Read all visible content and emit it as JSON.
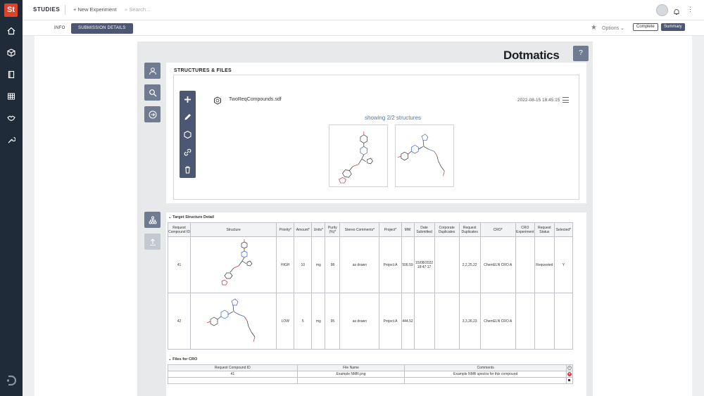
{
  "app": {
    "logo": "St",
    "title": "STUDIES",
    "new_experiment": "+ New Experiment",
    "search_placeholder": "Search..."
  },
  "rail_icons": [
    "home-icon",
    "cube-icon",
    "book-icon",
    "grid-icon",
    "handshake-icon",
    "tool-icon"
  ],
  "tabs": {
    "info": "INFO",
    "submission_details": "SUBMISSION DETAILS"
  },
  "actions": {
    "options": "Options",
    "complete": "Complete",
    "summary": "Summary"
  },
  "brand": "Dotmatics",
  "help_label": "?",
  "structures": {
    "title": "STRUCTURES & FILES",
    "file_name": "TwoReqCompounds.sdf",
    "file_date": "2022-08-15 18:45:15",
    "showing": "showing 2/2 structures"
  },
  "detail": {
    "header": "Target Structure Detail",
    "columns": [
      "Request Compound ID",
      "Structure",
      "Priority*",
      "Amount*",
      "Units*",
      "Purity (%)*",
      "Stereo Comments*",
      "Project*",
      "MW",
      "Date Submitted",
      "Corporate Duplicates",
      "Request Duplicates",
      "CRO*",
      "CRO Experiment",
      "Request Status",
      "Selected*"
    ],
    "rows": [
      {
        "id": "41",
        "priority": "HIGH",
        "amount": "10",
        "units": "mg",
        "purity": "98",
        "stereo": "as drawn",
        "project": "Project A",
        "mw": "506.59",
        "date": "15/08/2022 18:47:17",
        "corp_dup": "",
        "req_dup": "2,2,25,22",
        "cro": "ChemELN CRO A",
        "cro_exp": "",
        "status": "Requested",
        "selected": "Y"
      },
      {
        "id": "42",
        "priority": "LOW",
        "amount": "5",
        "units": "mg",
        "purity": "95",
        "stereo": "as drawn",
        "project": "Project A",
        "mw": "444.52",
        "date": "",
        "corp_dup": "",
        "req_dup": "3,3,26,23",
        "cro": "ChemELN CRO A",
        "cro_exp": "",
        "status": "",
        "selected": ""
      }
    ]
  },
  "files": {
    "header": "Files for CRO",
    "columns": [
      "Request Compound ID",
      "File Name",
      "Comments"
    ],
    "rows": [
      {
        "id": "41",
        "file": "Example NMR.png",
        "comment": "Example NMR spectra for this compound"
      },
      {
        "id": "",
        "file": "",
        "comment": ""
      }
    ]
  },
  "colors": {
    "rail": "#1f2b38",
    "accent": "#4c5773",
    "logo": "#d9442b",
    "link": "#4a78b8"
  }
}
